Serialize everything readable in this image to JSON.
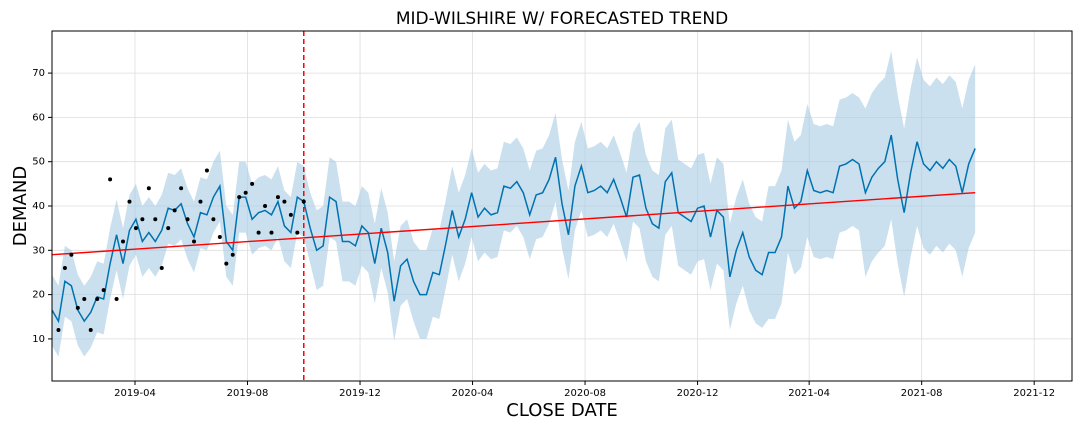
{
  "chart_data": {
    "type": "forecast",
    "title": "MID-WILSHIRE W/ FORECASTED TREND",
    "x_label": "CLOSE DATE",
    "y_label": "DEMAND",
    "xlim": [
      0,
      1106
    ],
    "ylim": [
      0.5,
      79.5
    ],
    "xticks": [
      {
        "value": 90,
        "label": "2019-04"
      },
      {
        "value": 212,
        "label": "2019-08"
      },
      {
        "value": 334,
        "label": "2019-12"
      },
      {
        "value": 456,
        "label": "2020-04"
      },
      {
        "value": 578,
        "label": "2020-08"
      },
      {
        "value": 700,
        "label": "2020-12"
      },
      {
        "value": 821,
        "label": "2021-04"
      },
      {
        "value": 943,
        "label": "2021-08"
      },
      {
        "value": 1065,
        "label": "2021-12"
      }
    ],
    "yticks": [
      10,
      20,
      30,
      40,
      50,
      60,
      70
    ],
    "grid": true,
    "forecast": {
      "color": "#0072b2",
      "band_color": "#a6cbe2",
      "x": [
        0,
        7,
        14,
        21,
        28,
        35,
        42,
        49,
        56,
        63,
        70,
        77,
        84,
        91,
        98,
        105,
        112,
        119,
        126,
        133,
        140,
        147,
        154,
        161,
        168,
        175,
        182,
        189,
        196,
        203,
        210,
        217,
        224,
        231,
        238,
        245,
        252,
        259,
        266,
        273,
        280,
        287,
        294,
        301,
        308,
        315,
        322,
        329,
        336,
        343,
        350,
        357,
        364,
        371,
        378,
        385,
        392,
        399,
        406,
        413,
        420,
        427,
        434,
        441,
        448,
        455,
        462,
        469,
        476,
        483,
        490,
        497,
        504,
        511,
        518,
        525,
        532,
        539,
        546,
        553,
        560,
        567,
        574,
        581,
        588,
        595,
        602,
        609,
        616,
        623,
        630,
        637,
        644,
        651,
        658,
        665,
        672,
        679,
        686,
        693,
        700,
        707,
        714,
        721,
        728,
        735,
        742,
        749,
        756,
        763,
        770,
        777,
        784,
        791,
        798,
        805,
        812,
        819,
        826,
        833,
        840,
        847,
        854,
        861,
        868,
        875,
        882,
        889,
        896,
        903,
        910,
        917,
        924,
        931,
        938,
        945,
        952,
        959,
        966,
        973,
        980,
        987,
        994,
        1001
      ],
      "values": [
        16.5,
        14,
        23,
        22,
        16.5,
        14,
        16,
        19.5,
        19,
        27,
        33.5,
        27,
        34.5,
        37,
        32,
        34,
        32,
        34.5,
        39.5,
        39,
        40.5,
        36,
        33,
        38.5,
        38,
        42,
        44.5,
        32,
        30,
        42,
        42,
        37,
        38.5,
        39,
        38,
        41,
        35.5,
        34,
        42,
        41,
        35,
        30,
        31,
        42,
        41,
        32,
        32,
        31,
        35.5,
        34,
        27,
        35,
        29.5,
        18.5,
        26.5,
        28,
        23,
        20,
        20,
        25,
        24.5,
        31.5,
        39,
        33,
        37,
        43,
        37.5,
        39.5,
        38,
        38.5,
        44.5,
        44,
        45.5,
        43,
        38,
        42.5,
        43,
        46,
        51,
        40.5,
        33.5,
        44.5,
        49,
        43,
        43.5,
        44.5,
        43,
        46,
        42,
        37.5,
        46.5,
        47,
        39.5,
        36,
        35,
        45.5,
        47.5,
        38.5,
        37.5,
        36.5,
        39.5,
        40,
        33,
        39,
        37.5,
        24,
        30,
        34,
        28.5,
        25.5,
        24.5,
        29.5,
        29.5,
        33,
        44.5,
        39.5,
        41,
        48,
        43.5,
        43,
        43.5,
        43,
        49,
        49.5,
        50.5,
        49.5,
        43,
        46.5,
        48.5,
        50,
        56,
        46,
        38.5,
        47.5,
        54.5,
        49.5,
        48,
        50,
        48.5,
        50.5,
        49,
        43,
        49.5,
        53
      ],
      "lower": [
        8.5,
        6,
        15,
        14,
        8.5,
        6,
        8,
        11.5,
        11,
        19,
        25.5,
        19,
        26.5,
        29,
        24,
        26,
        24,
        26.5,
        31.5,
        31,
        32.5,
        28,
        25,
        30.5,
        30,
        34,
        36.5,
        24,
        22,
        34,
        34,
        29,
        30.5,
        31,
        30,
        33,
        27.5,
        26,
        34,
        33,
        27,
        21,
        22,
        33,
        32,
        23,
        23,
        22,
        26.5,
        25,
        18,
        26,
        20.5,
        9.5,
        17.5,
        19,
        14,
        10,
        10,
        15,
        14.5,
        21.5,
        29,
        23,
        27,
        33,
        27.5,
        29.5,
        28,
        28.5,
        34.5,
        34,
        35.5,
        33,
        28,
        32.5,
        33,
        36,
        41,
        30.5,
        23.5,
        34.5,
        39,
        33,
        33.5,
        34.5,
        33,
        36,
        32,
        27.5,
        36.5,
        35,
        27.5,
        24,
        23,
        33.5,
        35.5,
        26.5,
        25.5,
        24.5,
        27.5,
        28,
        21,
        27,
        25.5,
        12,
        18,
        22,
        16.5,
        13.5,
        12.5,
        14.5,
        14.5,
        18,
        29.5,
        24.5,
        26,
        33,
        28.5,
        28,
        28.5,
        28,
        34,
        34.5,
        35.5,
        34.5,
        24,
        27.5,
        29.5,
        31,
        37,
        27,
        19.5,
        28.5,
        35.5,
        30.5,
        29,
        31,
        29.5,
        31.5,
        30,
        24,
        30.5,
        34
      ],
      "upper": [
        24.5,
        22,
        31,
        30,
        24.5,
        22,
        24,
        27.5,
        27,
        35,
        41.5,
        35,
        42.5,
        45,
        40,
        42,
        40,
        42.5,
        47.5,
        47,
        48.5,
        44,
        41,
        46.5,
        46,
        50,
        52.5,
        40,
        38,
        50,
        50,
        45,
        46.5,
        47,
        46,
        49,
        43.5,
        42,
        50,
        49,
        43,
        39,
        40,
        51,
        50,
        41,
        41,
        40,
        44.5,
        43,
        36,
        44,
        38.5,
        27.5,
        35.5,
        37,
        32,
        30,
        30,
        35,
        34.5,
        41.5,
        49,
        43,
        47,
        53,
        47.5,
        49.5,
        48,
        48.5,
        54.5,
        54,
        55.5,
        53,
        48,
        52.5,
        53,
        56,
        61,
        50.5,
        43.5,
        54.5,
        59,
        53,
        53.5,
        54.5,
        53,
        56,
        52,
        47.5,
        56.5,
        59,
        51.5,
        48,
        47,
        57.5,
        59.5,
        50.5,
        49.5,
        48.5,
        51.5,
        52,
        45,
        51,
        49.5,
        36,
        42,
        46,
        40.5,
        37.5,
        36.5,
        44.5,
        44.5,
        48,
        59.5,
        54.5,
        56,
        63,
        58.5,
        58,
        58.5,
        58,
        64,
        64.5,
        65.5,
        64.5,
        62,
        65.5,
        67.5,
        69,
        75,
        65,
        57.5,
        66.5,
        73.5,
        68.5,
        67,
        69,
        67.5,
        69.5,
        68,
        62,
        68.5,
        72
      ]
    },
    "observed": {
      "color": "#000000",
      "x": [
        7,
        14,
        21,
        28,
        35,
        42,
        49,
        56,
        63,
        70,
        77,
        84,
        91,
        98,
        105,
        112,
        119,
        126,
        133,
        140,
        147,
        154,
        161,
        168,
        175,
        182,
        189,
        196,
        203,
        210,
        217,
        224,
        231,
        238,
        245,
        252,
        259,
        266,
        273
      ],
      "values": [
        12,
        26,
        29,
        17,
        19,
        12,
        19,
        21,
        46,
        19,
        32,
        41,
        35,
        37,
        44,
        37,
        26,
        35,
        39,
        44,
        37,
        32,
        41,
        48,
        37,
        33,
        27,
        29,
        42,
        43,
        45,
        34,
        40,
        34,
        42,
        41,
        38,
        34,
        41
      ]
    },
    "trend": {
      "color": "#ff0000",
      "x": [
        0,
        1001
      ],
      "values": [
        29,
        43
      ]
    },
    "cutoff": {
      "color": "#ff0000",
      "x": 273
    }
  }
}
